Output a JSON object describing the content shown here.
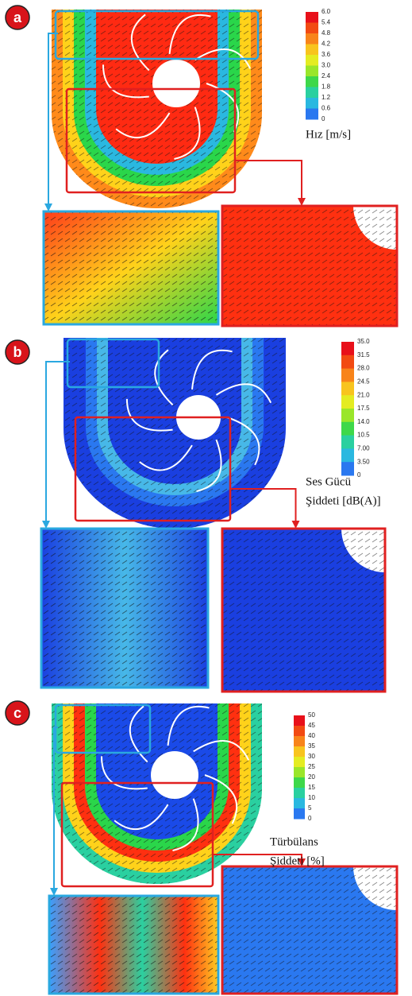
{
  "panels": [
    {
      "label": "a",
      "colorbar_title": [
        "Hız [m/s]"
      ],
      "colorbar_ticks": [
        "6.0",
        "5.4",
        "4.8",
        "4.2",
        "3.6",
        "3.0",
        "2.4",
        "1.8",
        "1.2",
        "0.6",
        "0"
      ]
    },
    {
      "label": "b",
      "colorbar_title": [
        "Ses Gücü",
        "Şiddeti [dB(A)]"
      ],
      "colorbar_ticks": [
        "35.0",
        "31.5",
        "28.0",
        "24.5",
        "21.0",
        "17.5",
        "14.0",
        "10.5",
        "7.00",
        "3.50",
        "0"
      ]
    },
    {
      "label": "c",
      "colorbar_title": [
        "Türbülans",
        "Şiddeti [%]"
      ],
      "colorbar_ticks": [
        "50",
        "45",
        "40",
        "35",
        "30",
        "25",
        "20",
        "15",
        "10",
        "5",
        "0"
      ]
    }
  ],
  "colorbar_colors": [
    "#e8101a",
    "#f24a12",
    "#f8841a",
    "#f8c41e",
    "#e4ec22",
    "#9ae62a",
    "#3ed84a",
    "#2ad0a0",
    "#2ab8e0",
    "#2a78f0",
    "#1a2ae0"
  ]
}
